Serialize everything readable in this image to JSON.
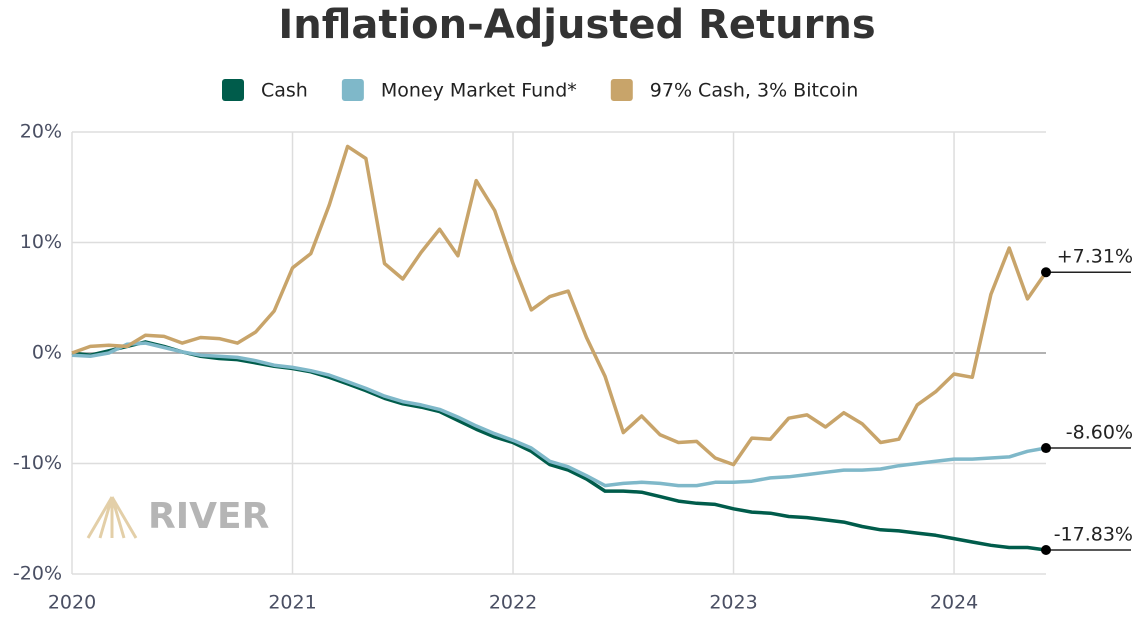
{
  "chart_data": {
    "type": "line",
    "title": "Inflation-Adjusted Returns",
    "watermark": "RIVER",
    "x": [
      2020,
      2020.083,
      2020.167,
      2020.25,
      2020.333,
      2020.417,
      2020.5,
      2020.583,
      2020.667,
      2020.75,
      2020.833,
      2020.917,
      2021,
      2021.083,
      2021.167,
      2021.25,
      2021.333,
      2021.417,
      2021.5,
      2021.583,
      2021.667,
      2021.75,
      2021.833,
      2021.917,
      2022,
      2022.083,
      2022.167,
      2022.25,
      2022.333,
      2022.417,
      2022.5,
      2022.583,
      2022.667,
      2022.75,
      2022.833,
      2022.917,
      2023,
      2023.083,
      2023.167,
      2023.25,
      2023.333,
      2023.417,
      2023.5,
      2023.583,
      2023.667,
      2023.75,
      2023.833,
      2023.917,
      2024,
      2024.083,
      2024.167,
      2024.25,
      2024.333,
      2024.417
    ],
    "series": [
      {
        "name": "Cash",
        "color": "#005c4b",
        "end_label": "-17.83%",
        "values": [
          0,
          -0.2,
          0.2,
          0.6,
          1.0,
          0.6,
          0.1,
          -0.3,
          -0.5,
          -0.6,
          -0.9,
          -1.2,
          -1.4,
          -1.7,
          -2.2,
          -2.8,
          -3.4,
          -4.1,
          -4.6,
          -4.9,
          -5.3,
          -6.1,
          -6.9,
          -7.6,
          -8.1,
          -8.9,
          -10.1,
          -10.6,
          -11.4,
          -12.5,
          -12.5,
          -12.6,
          -13.0,
          -13.4,
          -13.6,
          -13.7,
          -14.1,
          -14.4,
          -14.5,
          -14.8,
          -14.9,
          -15.1,
          -15.3,
          -15.7,
          -16.0,
          -16.1,
          -16.3,
          -16.5,
          -16.8,
          -17.1,
          -17.4,
          -17.6,
          -17.6,
          -17.83
        ]
      },
      {
        "name": "Money Market Fund*",
        "color": "#7fb8c9",
        "end_label": "-8.60%",
        "values": [
          -0.2,
          -0.3,
          0.0,
          0.8,
          0.9,
          0.5,
          0.1,
          -0.2,
          -0.3,
          -0.4,
          -0.7,
          -1.1,
          -1.3,
          -1.6,
          -2.0,
          -2.6,
          -3.2,
          -3.9,
          -4.4,
          -4.7,
          -5.1,
          -5.8,
          -6.6,
          -7.3,
          -7.9,
          -8.6,
          -9.8,
          -10.3,
          -11.1,
          -12.0,
          -11.8,
          -11.7,
          -11.8,
          -12.0,
          -12.0,
          -11.7,
          -11.7,
          -11.6,
          -11.3,
          -11.2,
          -11.0,
          -10.8,
          -10.6,
          -10.6,
          -10.5,
          -10.2,
          -10.0,
          -9.8,
          -9.6,
          -9.6,
          -9.5,
          -9.4,
          -8.9,
          -8.6
        ]
      },
      {
        "name": "97% Cash, 3% Bitcoin",
        "color": "#c8a46a",
        "end_label": "+7.31%",
        "values": [
          0,
          0.6,
          0.7,
          0.6,
          1.6,
          1.5,
          0.9,
          1.4,
          1.3,
          0.9,
          1.9,
          3.8,
          7.7,
          9.0,
          13.4,
          18.7,
          17.6,
          8.1,
          6.7,
          9.1,
          11.2,
          8.8,
          15.6,
          12.9,
          8.1,
          3.9,
          5.1,
          5.6,
          1.4,
          -2.1,
          -7.2,
          -5.7,
          -7.4,
          -8.1,
          -8.0,
          -9.5,
          -10.1,
          -7.7,
          -7.8,
          -5.9,
          -5.6,
          -6.7,
          -5.4,
          -6.4,
          -8.1,
          -7.8,
          -4.7,
          -3.5,
          -1.9,
          -2.2,
          5.3,
          9.5,
          4.9,
          7.31
        ]
      }
    ],
    "xlim": [
      2020,
      2024.417
    ],
    "xticks": [
      2020,
      2021,
      2022,
      2023,
      2024
    ],
    "ylim": [
      -20,
      20
    ],
    "yticks": [
      {
        "value": -20,
        "label": "-20%"
      },
      {
        "value": -10,
        "label": "-10%"
      },
      {
        "value": 0,
        "label": "0%"
      },
      {
        "value": 10,
        "label": "10%"
      },
      {
        "value": 20,
        "label": "20%"
      }
    ],
    "grid": true
  }
}
